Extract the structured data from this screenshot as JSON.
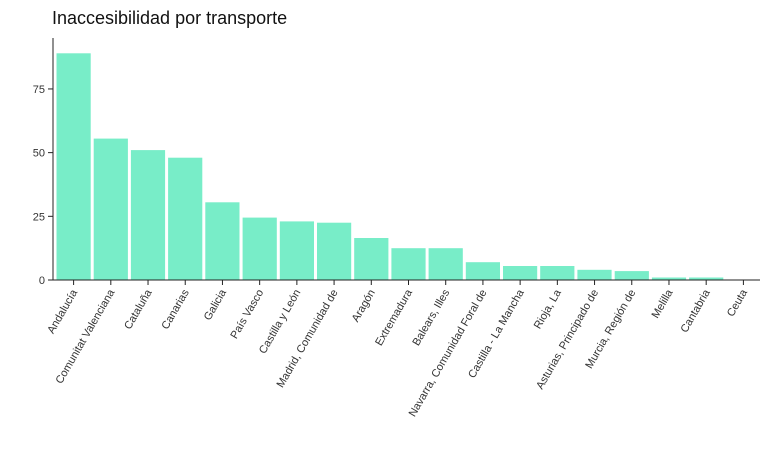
{
  "chart_data": {
    "type": "bar",
    "title": "Inaccesibilidad por transporte",
    "xlabel": "",
    "ylabel": "",
    "ylim": [
      0,
      95
    ],
    "yticks": [
      0,
      25,
      50,
      75
    ],
    "grid": false,
    "bar_color": "#78edc8",
    "categories": [
      "Andalucía",
      "Comunitat Valenciana",
      "Cataluña",
      "Canarias",
      "Galicia",
      "País Vasco",
      "Castilla y León",
      "Madrid, Comunidad de",
      "Aragón",
      "Extremadura",
      "Balears, Illes",
      "Navarra, Comunidad Foral de",
      "Castilla - La Mancha",
      "Rioja, La",
      "Asturias, Principado de",
      "Murcia, Región de",
      "Melilla",
      "Cantabria",
      "Ceuta"
    ],
    "values": [
      89,
      55.5,
      51,
      48,
      30.5,
      24.5,
      23,
      22.5,
      16.5,
      12.5,
      12.5,
      7,
      5.5,
      5.5,
      4,
      3.5,
      1,
      1,
      0
    ]
  }
}
